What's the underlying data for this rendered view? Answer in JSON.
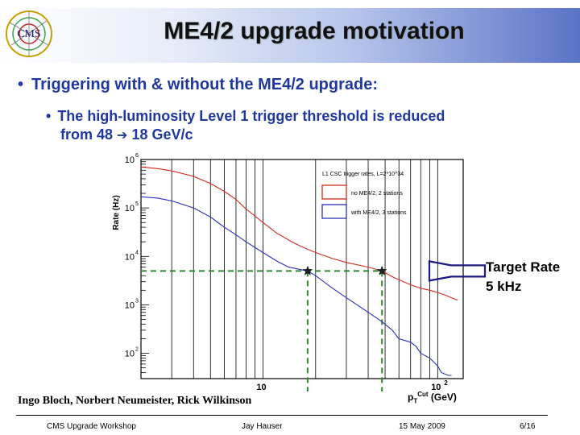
{
  "slide": {
    "title": "ME4/2 upgrade motivation",
    "bullet_main": "Triggering with & without the ME4/2 upgrade:",
    "bullet_sub_line1": "The high-luminosity Level 1 trigger threshold is reduced",
    "bullet_sub_line2a": "from 48",
    "bullet_sub_line2b": "18 GeV/c",
    "authors": "Ingo Bloch, Norbert Neumeister, Rick Wilkinson",
    "logo_text": "CMS"
  },
  "annotation": {
    "target_line1": "Target Rate",
    "target_line2": "5 kHz"
  },
  "footer": {
    "workshop": "CMS Upgrade Workshop",
    "presenter": "Jay Hauser",
    "date": "15 May 2009",
    "page": "6/16"
  },
  "chart_data": {
    "type": "line",
    "title": "L1 CSC trigger rates, L=2*10^34",
    "ylabel": "Rate (Hz)",
    "xlabel_main": "p",
    "xlabel_sup": "Cut",
    "xlabel_sub": "T",
    "xlabel_unit": "(GeV)",
    "x_scale": "log",
    "y_scale": "log",
    "xlim": [
      2,
      140
    ],
    "ylim": [
      30,
      1000000
    ],
    "y_ticks": [
      {
        "value": 100,
        "label": "10",
        "exp": "2"
      },
      {
        "value": 1000,
        "label": "10",
        "exp": "3"
      },
      {
        "value": 10000,
        "label": "10",
        "exp": "4"
      },
      {
        "value": 100000,
        "label": "10",
        "exp": "5"
      },
      {
        "value": 1000000,
        "label": "10",
        "exp": "6"
      }
    ],
    "x_ticks": [
      {
        "value": 10,
        "label": "10",
        "exp": ""
      },
      {
        "value": 100,
        "label": "10",
        "exp": "2"
      }
    ],
    "legend_placement": "top-right",
    "grid": true,
    "series": [
      {
        "name": "no ME4/2, 2 stations",
        "color": "#d22a1c",
        "points": [
          [
            2,
            700000
          ],
          [
            2.5,
            650000
          ],
          [
            3,
            580000
          ],
          [
            4,
            450000
          ],
          [
            5,
            320000
          ],
          [
            6,
            220000
          ],
          [
            7,
            150000
          ],
          [
            8,
            95000
          ],
          [
            10,
            50000
          ],
          [
            12,
            30000
          ],
          [
            15,
            19000
          ],
          [
            18,
            14000
          ],
          [
            20,
            12000
          ],
          [
            25,
            9000
          ],
          [
            30,
            7500
          ],
          [
            40,
            6000
          ],
          [
            48,
            5000
          ],
          [
            55,
            3800
          ],
          [
            60,
            3300
          ],
          [
            70,
            2600
          ],
          [
            80,
            2200
          ],
          [
            90,
            2000
          ],
          [
            100,
            1800
          ],
          [
            110,
            1600
          ],
          [
            120,
            1400
          ],
          [
            130,
            1250
          ]
        ]
      },
      {
        "name": "with ME4/2, 3 stations",
        "color": "#2a31b8",
        "points": [
          [
            2,
            170000
          ],
          [
            2.5,
            160000
          ],
          [
            3,
            140000
          ],
          [
            4,
            100000
          ],
          [
            5,
            65000
          ],
          [
            6,
            40000
          ],
          [
            7,
            28000
          ],
          [
            8,
            20000
          ],
          [
            10,
            12000
          ],
          [
            12,
            8000
          ],
          [
            14,
            6000
          ],
          [
            18,
            5000
          ],
          [
            20,
            4000
          ],
          [
            25,
            2200
          ],
          [
            30,
            1400
          ],
          [
            40,
            700
          ],
          [
            48,
            450
          ],
          [
            55,
            300
          ],
          [
            60,
            200
          ],
          [
            70,
            170
          ],
          [
            75,
            140
          ],
          [
            80,
            100
          ],
          [
            90,
            80
          ],
          [
            100,
            55
          ],
          [
            105,
            40
          ],
          [
            115,
            35
          ],
          [
            120,
            35
          ]
        ]
      }
    ],
    "markers": [
      {
        "x": 18,
        "y": 5000,
        "symbol": "star"
      },
      {
        "x": 48,
        "y": 5000,
        "symbol": "star"
      }
    ],
    "target_rate_y": 5000
  }
}
